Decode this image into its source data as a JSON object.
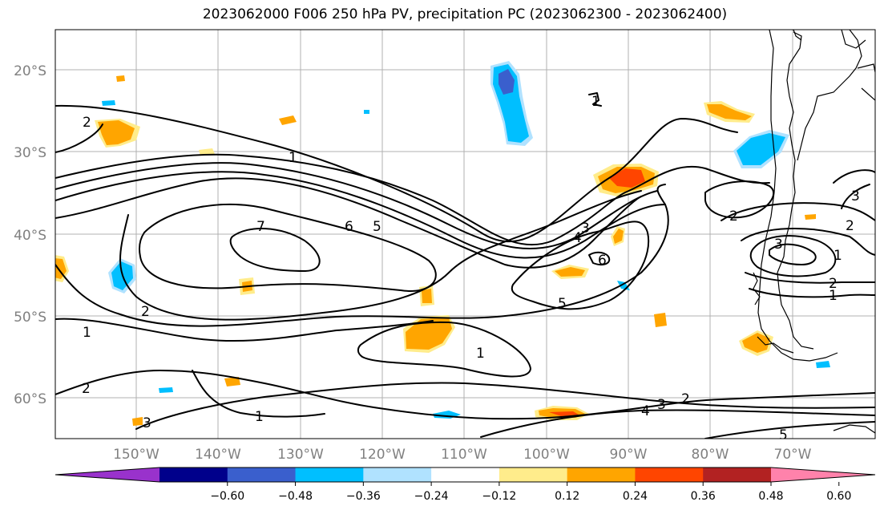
{
  "title": "2023062000 F006 250 hPa PV, precipitation PC (2023062300 - 2023062400)",
  "map": {
    "lat_ticks": [
      "20°S",
      "30°S",
      "40°S",
      "50°S",
      "60°S"
    ],
    "lon_ticks": [
      "150°W",
      "140°W",
      "130°W",
      "120°W",
      "110°W",
      "100°W",
      "90°W",
      "80°W",
      "70°W"
    ],
    "contour_labels": [
      "1",
      "7",
      "6",
      "5",
      "3",
      "4",
      "6",
      "5",
      "2",
      "1",
      "1",
      "2",
      "1",
      "3",
      "2",
      "4",
      "3",
      "2",
      "5",
      "2",
      "1",
      "3",
      "2",
      "3",
      "2",
      "1",
      "1"
    ]
  },
  "colorbar": {
    "tick_labels": [
      "−0.60",
      "−0.48",
      "−0.36",
      "−0.24",
      "−0.12",
      "0.12",
      "0.24",
      "0.36",
      "0.48",
      "0.60"
    ],
    "colors": [
      "#9932cc",
      "#00008b",
      "#3a5fcd",
      "#00bfff",
      "#b0e2ff",
      "#ffffff",
      "#ffec8b",
      "#ffa500",
      "#ff4500",
      "#b22222",
      "#ff82ab"
    ]
  }
}
